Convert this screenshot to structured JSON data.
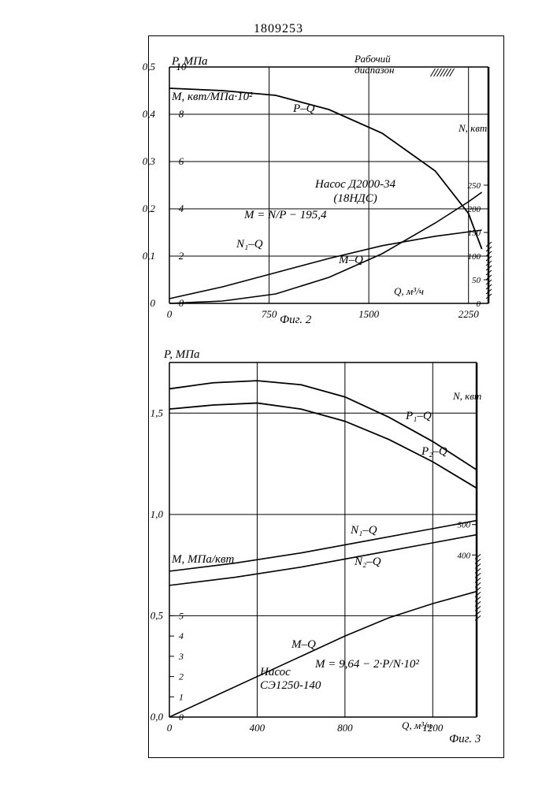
{
  "patent_number": "1809253",
  "fig2": {
    "type": "line",
    "caption": "Фиг. 2",
    "x_axis": {
      "label": "Q, м³/ч",
      "min": 0,
      "max": 2400,
      "ticks": [
        0,
        750,
        1500,
        2250
      ]
    },
    "y_left_P": {
      "label": "P, МПа",
      "ticks": [
        0,
        0.1,
        0.2,
        0.3,
        0.4,
        0.5
      ]
    },
    "y_left_M": {
      "label": "М, квт/МПа·10²",
      "ticks": [
        0,
        2,
        4,
        6,
        8,
        10
      ]
    },
    "y_right_N": {
      "label": "N, квт",
      "ticks": [
        0,
        50,
        100,
        150,
        200,
        250
      ]
    },
    "annotations": {
      "working_range": "Рабочий\nдиапазон",
      "pump": "Насос Д2000-34\n(18НДС)",
      "formula": "М = N/P − 195,4",
      "curve_PQ": "P–Q",
      "curve_N1Q": "N₁–Q",
      "curve_MQ": "M–Q"
    },
    "curves": {
      "P_Q": {
        "color": "#000",
        "width": 1.8,
        "points": [
          [
            0,
            0.455
          ],
          [
            400,
            0.45
          ],
          [
            800,
            0.44
          ],
          [
            1200,
            0.41
          ],
          [
            1600,
            0.36
          ],
          [
            2000,
            0.28
          ],
          [
            2250,
            0.19
          ],
          [
            2350,
            0.115
          ]
        ]
      },
      "N1_Q": {
        "color": "#000",
        "width": 1.6,
        "points": [
          [
            0,
            0.01
          ],
          [
            400,
            0.035
          ],
          [
            800,
            0.065
          ],
          [
            1200,
            0.095
          ],
          [
            1600,
            0.122
          ],
          [
            2000,
            0.142
          ],
          [
            2350,
            0.155
          ]
        ]
      },
      "M_Q": {
        "color": "#000",
        "width": 1.6,
        "points": [
          [
            0,
            0.0
          ],
          [
            400,
            0.005
          ],
          [
            800,
            0.02
          ],
          [
            1200,
            0.055
          ],
          [
            1600,
            0.105
          ],
          [
            2000,
            0.17
          ],
          [
            2250,
            0.215
          ],
          [
            2350,
            0.235
          ]
        ]
      }
    },
    "grid_color": "#000",
    "background": "#ffffff"
  },
  "fig3": {
    "type": "line",
    "caption": "Фиг. 3",
    "x_axis": {
      "label": "Q, м³/ч",
      "min": 0,
      "max": 1400,
      "ticks": [
        0,
        400,
        800,
        1200
      ]
    },
    "y_left_P": {
      "label": "P, МПа",
      "ticks": [
        0,
        0.5,
        1.0,
        1.5
      ]
    },
    "y_left_M": {
      "label": "М, МПа/квт",
      "ticks": [
        0,
        1,
        2,
        3,
        4,
        5
      ]
    },
    "y_right_N": {
      "label": "N, квт",
      "ticks": [
        400,
        500
      ]
    },
    "annotations": {
      "pump": "Насос\nСЭ1250-140",
      "formula": "М = 9,64 − 2·P/N·10²",
      "curve_P1Q": "P₁–Q",
      "curve_P2Q": "P₂–Q",
      "curve_N1Q": "N₁–Q",
      "curve_N2Q": "N₂–Q",
      "curve_MQ": "M–Q"
    },
    "curves": {
      "P1_Q": {
        "color": "#000",
        "width": 1.8,
        "points": [
          [
            0,
            1.62
          ],
          [
            200,
            1.65
          ],
          [
            400,
            1.66
          ],
          [
            600,
            1.64
          ],
          [
            800,
            1.58
          ],
          [
            1000,
            1.48
          ],
          [
            1200,
            1.36
          ],
          [
            1400,
            1.22
          ]
        ]
      },
      "P2_Q": {
        "color": "#000",
        "width": 1.8,
        "points": [
          [
            0,
            1.52
          ],
          [
            200,
            1.54
          ],
          [
            400,
            1.55
          ],
          [
            600,
            1.52
          ],
          [
            800,
            1.46
          ],
          [
            1000,
            1.37
          ],
          [
            1200,
            1.26
          ],
          [
            1400,
            1.13
          ]
        ]
      },
      "N1_Q": {
        "color": "#000",
        "width": 1.6,
        "points": [
          [
            0,
            0.72
          ],
          [
            300,
            0.76
          ],
          [
            600,
            0.81
          ],
          [
            900,
            0.87
          ],
          [
            1200,
            0.93
          ],
          [
            1400,
            0.97
          ]
        ]
      },
      "N2_Q": {
        "color": "#000",
        "width": 1.6,
        "points": [
          [
            0,
            0.65
          ],
          [
            300,
            0.69
          ],
          [
            600,
            0.74
          ],
          [
            900,
            0.8
          ],
          [
            1200,
            0.86
          ],
          [
            1400,
            0.9
          ]
        ]
      },
      "M_Q": {
        "color": "#000",
        "width": 1.6,
        "points": [
          [
            0,
            0.0
          ],
          [
            200,
            0.1
          ],
          [
            400,
            0.2
          ],
          [
            600,
            0.3
          ],
          [
            800,
            0.4
          ],
          [
            1000,
            0.49
          ],
          [
            1200,
            0.56
          ],
          [
            1400,
            0.62
          ]
        ]
      }
    },
    "grid_color": "#000",
    "background": "#ffffff"
  }
}
